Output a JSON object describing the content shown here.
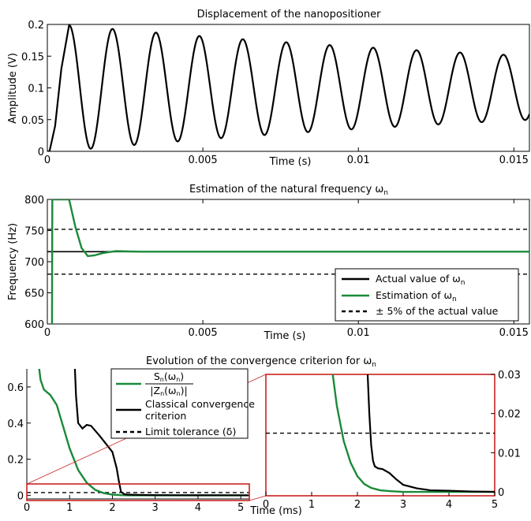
{
  "chart_data": [
    {
      "id": "p1",
      "type": "line",
      "title": "Displacement of the nanopositioner",
      "xlabel": "Time (s)",
      "ylabel": "Amplitude (V)",
      "xlim": [
        0,
        0.0155
      ],
      "ylim": [
        0,
        0.2
      ],
      "xticks": [
        0,
        0.005,
        0.01,
        0.015
      ],
      "xtick_labels": [
        "0",
        "0.005",
        "0.01",
        "0.015"
      ],
      "yticks": [
        0,
        0.05,
        0.1,
        0.15,
        0.2
      ],
      "ytick_labels": [
        "0",
        "0.05",
        "0.1",
        "0.15",
        "0.2"
      ],
      "grid": false,
      "colors": {
        "signal": "#000000"
      },
      "series": [
        {
          "kind": "damped_oscillation",
          "color": "#000000",
          "frequency_hz": 716,
          "offset": 0.1,
          "peaks": [
            [
              0.0007,
              0.199
            ],
            [
              0.0152,
              0.151
            ]
          ],
          "rise": [
            [
              0.0,
              0.0
            ],
            [
              7e-05,
              0.0
            ],
            [
              0.00025,
              0.04
            ],
            [
              0.00045,
              0.13
            ],
            [
              0.0007,
              0.199
            ]
          ],
          "x_end": 0.0155
        }
      ]
    },
    {
      "id": "p2",
      "type": "line",
      "title": "Estimation of the natural frequency ω",
      "title_sub": "n",
      "xlabel": "Time (s)",
      "ylabel": "Frequency (Hz)",
      "xlim": [
        0,
        0.0155
      ],
      "ylim": [
        600,
        800
      ],
      "xticks": [
        0,
        0.005,
        0.01,
        0.015
      ],
      "xtick_labels": [
        "0",
        "0.005",
        "0.01",
        "0.015"
      ],
      "yticks": [
        600,
        650,
        700,
        750,
        800
      ],
      "ytick_labels": [
        "600",
        "650",
        "700",
        "750",
        "800"
      ],
      "grid": false,
      "legend_placement": "bottom-right",
      "colors": {
        "actual": "#000000",
        "estimate": "#1a8a3a",
        "tolerance": "#000000"
      },
      "series": [
        {
          "name": "Actual value of ω",
          "name_sub": "n",
          "style": "solid",
          "color": "#000000",
          "x": [
            0,
            0.0155
          ],
          "y": [
            716,
            716
          ]
        },
        {
          "name": "Estimation of ω",
          "name_sub": "n",
          "style": "solid",
          "color": "#1a8a3a",
          "x": [
            0.00015,
            0.00016,
            0.0002,
            0.0003,
            0.0005,
            0.0007,
            0.0009,
            0.0011,
            0.0013,
            0.0015,
            0.0018,
            0.0022,
            0.003,
            0.005,
            0.0155
          ],
          "y": [
            600,
            800,
            800,
            800,
            800,
            800,
            756,
            722,
            709,
            710,
            714,
            717,
            716,
            716,
            716
          ]
        },
        {
          "name": "± 5% of the actual value",
          "style": "dashed",
          "color": "#000000",
          "x": [
            0,
            0.0155
          ],
          "y": [
            752,
            752
          ],
          "y2": [
            680,
            680
          ]
        }
      ]
    },
    {
      "id": "p3a",
      "type": "line",
      "title": "Evolution of the convergence criterion for ω",
      "title_sub": "n",
      "xlabel": "",
      "ylabel": "",
      "xlim": [
        0,
        5.2
      ],
      "ylim": [
        -0.02,
        0.7
      ],
      "xticks": [
        0,
        1,
        2,
        3,
        4,
        5
      ],
      "xtick_labels": [
        "0",
        "1",
        "2",
        "3",
        "4",
        "5"
      ],
      "yticks": [
        0,
        0.2,
        0.4,
        0.6
      ],
      "ytick_labels": [
        "0",
        "0.2",
        "0.4",
        "0.6"
      ],
      "grid": false,
      "legend_placement": "top-right",
      "zoom_box": {
        "x": [
          0,
          5.2
        ],
        "y": [
          -0.02,
          0.09
        ],
        "color": "#cc2222"
      },
      "series": [
        {
          "name": "S",
          "name_sub": "n",
          "name_arg": "(ω",
          "name_arg_sub": "n",
          "name_arg_end": ")",
          "name_den": "|Z",
          "name_den_sub": "n",
          "name_den_arg": "(ω",
          "name_den_arg_sub": "n",
          "name_den_end": ")|",
          "style": "solid",
          "color": "#1a8a3a",
          "x": [
            0.28,
            0.32,
            0.4,
            0.55,
            0.7,
            0.85,
            1.0,
            1.2,
            1.4,
            1.6,
            1.8,
            2.0,
            2.2,
            2.4,
            5.2
          ],
          "y": [
            0.72,
            0.64,
            0.585,
            0.555,
            0.5,
            0.38,
            0.26,
            0.14,
            0.07,
            0.03,
            0.012,
            0.004,
            0.001,
            0.0,
            0.0
          ]
        },
        {
          "name": "Classical convergence criterion",
          "name_lines": [
            "Classical convergence",
            "criterion"
          ],
          "style": "solid",
          "color": "#000000",
          "x": [
            1.12,
            1.15,
            1.2,
            1.3,
            1.4,
            1.5,
            1.7,
            1.9,
            2.0,
            2.1,
            2.15,
            2.2,
            2.28,
            2.35,
            2.5,
            2.7,
            3.0,
            3.5,
            5.2
          ],
          "y": [
            0.72,
            0.55,
            0.4,
            0.37,
            0.39,
            0.385,
            0.33,
            0.27,
            0.24,
            0.15,
            0.08,
            0.02,
            0.006,
            0.004,
            0.003,
            0.002,
            0.001,
            0.0005,
            0.0
          ]
        },
        {
          "name": "Limit tolerance (δ)",
          "style": "dashed",
          "color": "#000000",
          "x": [
            0,
            5.2
          ],
          "y": [
            0.015,
            0.015
          ]
        }
      ]
    },
    {
      "id": "p3b",
      "type": "line",
      "title": "",
      "xlabel": "Time (ms)",
      "ylabel": "",
      "xlim": [
        0,
        5
      ],
      "ylim": [
        -0.001,
        0.03
      ],
      "xticks": [
        0,
        1,
        2,
        3,
        4,
        5
      ],
      "xtick_labels": [
        "0",
        "1",
        "2",
        "3",
        "4",
        "5"
      ],
      "yticks": [
        0,
        0.01,
        0.02,
        0.03
      ],
      "ytick_labels": [
        "0",
        "0.01",
        "0.02",
        "0.03"
      ],
      "y_axis_side": "right",
      "frame_color": "#cc2222",
      "grid": false,
      "series": [
        {
          "style": "solid",
          "color": "#1a8a3a",
          "x": [
            1.45,
            1.55,
            1.7,
            1.85,
            2.0,
            2.15,
            2.3,
            2.5,
            2.7,
            3.0,
            3.3,
            5.0
          ],
          "y": [
            0.031,
            0.022,
            0.013,
            0.0075,
            0.004,
            0.002,
            0.001,
            0.0004,
            0.0002,
            0.0,
            0.0,
            0.0
          ]
        },
        {
          "style": "solid",
          "color": "#000000",
          "x": [
            2.22,
            2.26,
            2.3,
            2.34,
            2.38,
            2.45,
            2.55,
            2.7,
            2.85,
            3.0,
            3.3,
            3.6,
            4.0,
            4.5,
            5.0
          ],
          "y": [
            0.031,
            0.02,
            0.012,
            0.008,
            0.0065,
            0.006,
            0.0058,
            0.0048,
            0.0032,
            0.0018,
            0.0009,
            0.0004,
            0.0003,
            0.0001,
            0.0
          ]
        },
        {
          "style": "dashed",
          "color": "#000000",
          "x": [
            0,
            5
          ],
          "y": [
            0.015,
            0.015
          ]
        }
      ]
    }
  ]
}
